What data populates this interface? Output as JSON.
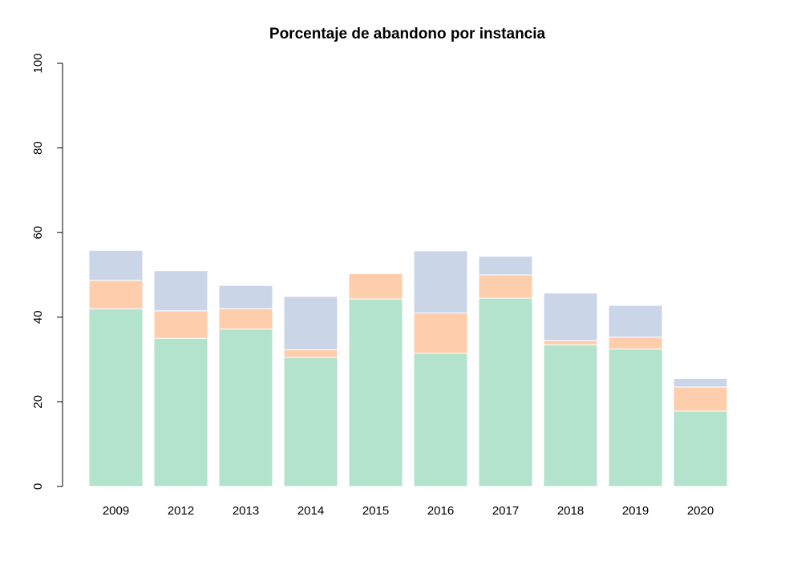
{
  "chart_data": {
    "type": "bar",
    "stacked": true,
    "title": "Porcentaje de abandono por instancia",
    "xlabel": "",
    "ylabel": "",
    "ylim": [
      0,
      100
    ],
    "yticks": [
      0,
      20,
      40,
      60,
      80,
      100
    ],
    "grid": false,
    "legend": null,
    "categories": [
      "2009",
      "2012",
      "2013",
      "2014",
      "2015",
      "2016",
      "2017",
      "2018",
      "2019",
      "2020"
    ],
    "series": [
      {
        "color": "#b3e2cd",
        "values": [
          42.0,
          35.0,
          37.2,
          30.5,
          44.3,
          31.5,
          44.5,
          33.5,
          32.5,
          17.8
        ]
      },
      {
        "color": "#fdcdac",
        "values": [
          6.7,
          6.5,
          4.8,
          1.8,
          6.0,
          9.5,
          5.5,
          1.0,
          2.8,
          5.7
        ]
      },
      {
        "color": "#cbd5e8",
        "values": [
          7.1,
          9.5,
          5.5,
          12.6,
          0.0,
          14.7,
          4.4,
          11.2,
          7.5,
          2.0
        ]
      }
    ]
  }
}
